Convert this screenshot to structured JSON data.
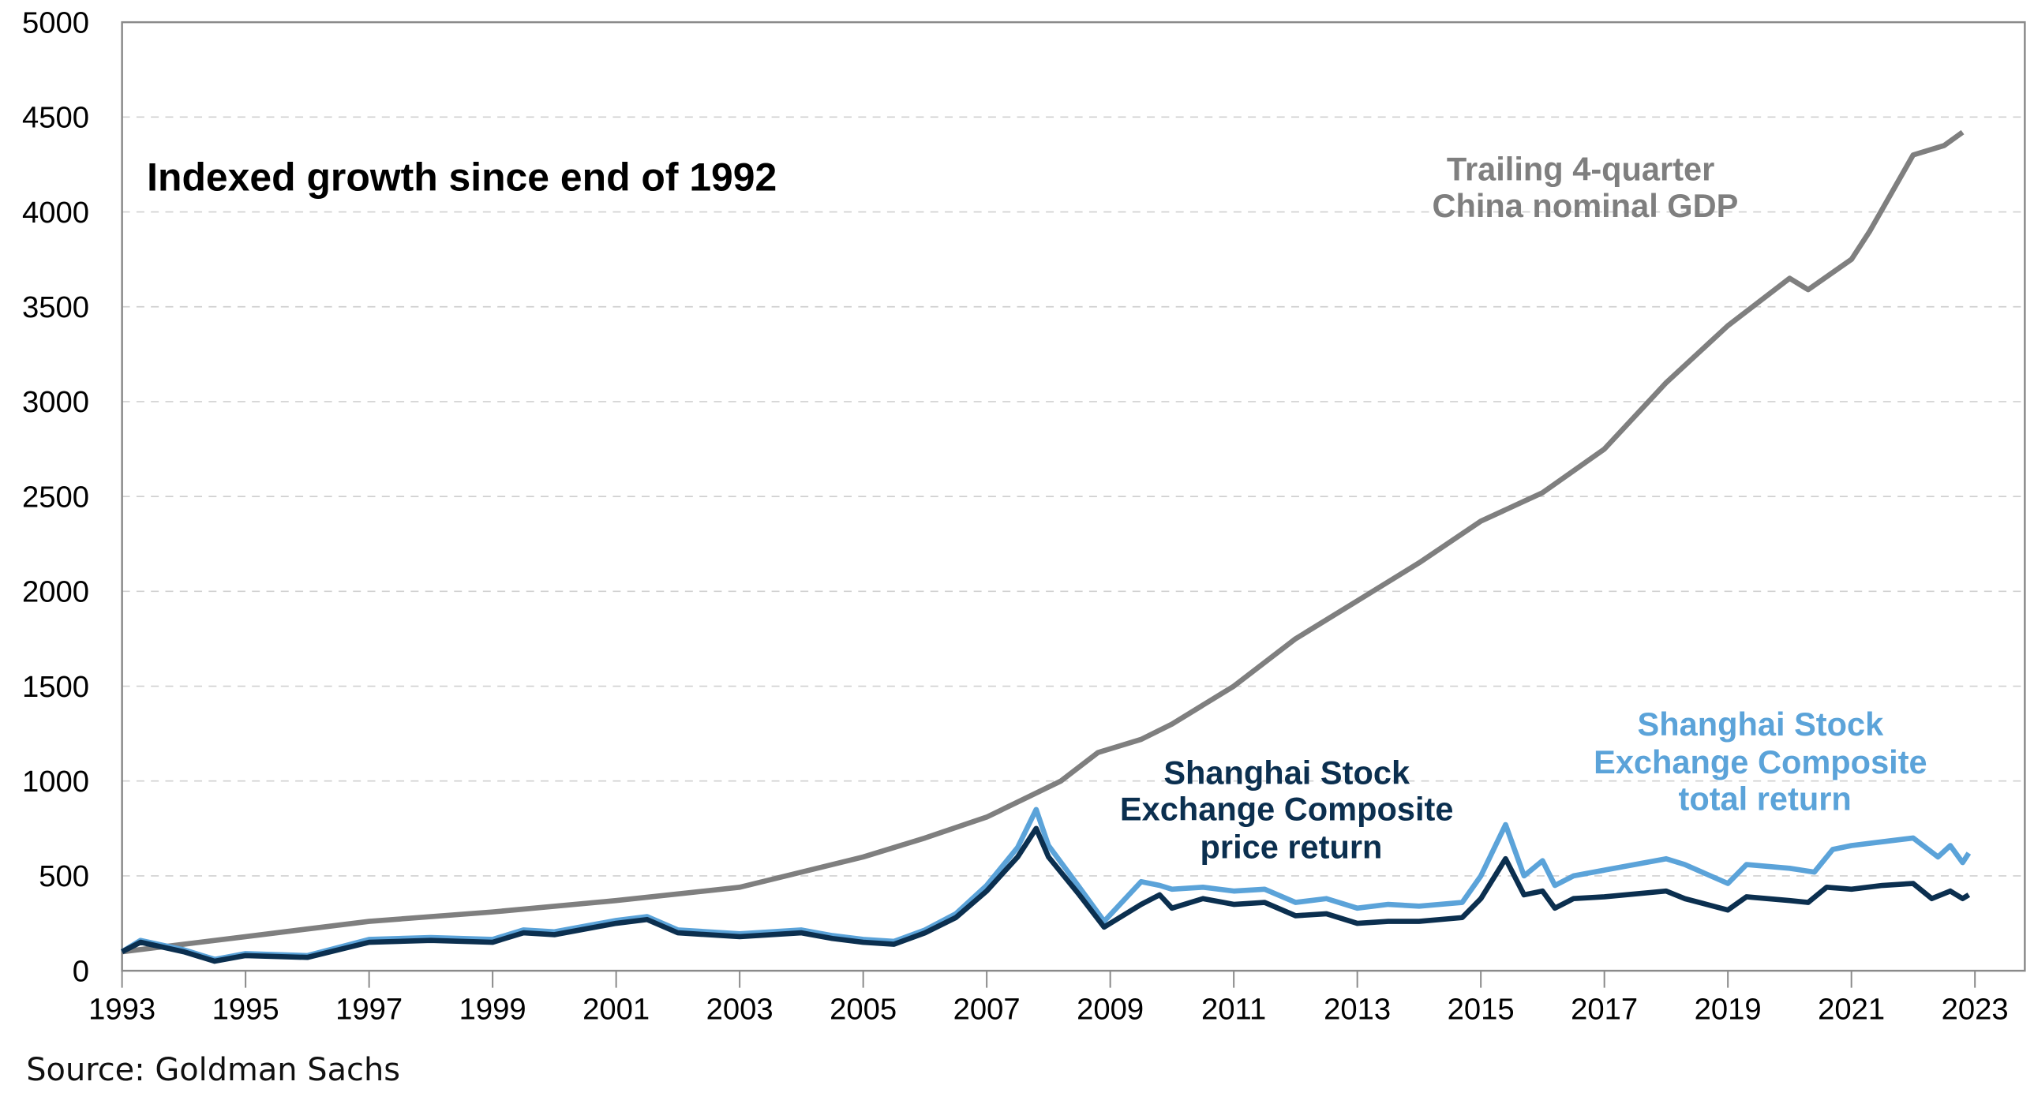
{
  "chart_data": {
    "type": "line",
    "title": "Indexed growth since end of 1992",
    "source": "Source: Goldman Sachs",
    "xlabel": "",
    "ylabel": "",
    "xlim": [
      1993,
      2023.8
    ],
    "ylim": [
      0,
      5000
    ],
    "x_ticks": [
      "1993",
      "1995",
      "1997",
      "1999",
      "2001",
      "2003",
      "2005",
      "2007",
      "2009",
      "2011",
      "2013",
      "2015",
      "2017",
      "2019",
      "2021",
      "2023"
    ],
    "y_ticks": [
      "0",
      "500",
      "1000",
      "1500",
      "2000",
      "2500",
      "3000",
      "3500",
      "4000",
      "4500",
      "5000"
    ],
    "grid": "horizontal dashed",
    "series": [
      {
        "name": "Trailing 4-quarter China nominal GDP",
        "label_lines": [
          "Trailing 4-quarter",
          "China nominal GDP"
        ],
        "color": "#7f7f7f",
        "x": [
          1993,
          1995,
          1997,
          1999,
          2001,
          2003,
          2005,
          2006,
          2007,
          2008.2,
          2008.8,
          2009.5,
          2010,
          2011,
          2012,
          2013,
          2014,
          2015,
          2016,
          2017,
          2018,
          2019,
          2020,
          2020.3,
          2021,
          2021.3,
          2022,
          2022.5,
          2022.8
        ],
        "y": [
          100,
          180,
          260,
          310,
          370,
          440,
          600,
          700,
          810,
          1000,
          1150,
          1220,
          1300,
          1500,
          1750,
          1950,
          2150,
          2370,
          2520,
          2750,
          3100,
          3400,
          3650,
          3590,
          3750,
          3900,
          4300,
          4350,
          4420
        ]
      },
      {
        "name": "Shanghai Stock Exchange Composite price return",
        "label_lines": [
          "Shanghai Stock",
          "Exchange Composite",
          "price return"
        ],
        "color": "#0b2f4f",
        "x": [
          1993,
          1993.3,
          1994,
          1994.5,
          1995,
          1996,
          1997,
          1998,
          1999,
          1999.5,
          2000,
          2001,
          2001.5,
          2002,
          2003,
          2004,
          2004.5,
          2005,
          2005.5,
          2006,
          2006.5,
          2007,
          2007.5,
          2007.8,
          2008,
          2008.5,
          2008.9,
          2009.5,
          2009.8,
          2010,
          2010.5,
          2011,
          2011.5,
          2012,
          2012.5,
          2013,
          2013.5,
          2014,
          2014.7,
          2015,
          2015.4,
          2015.7,
          2016,
          2016.2,
          2016.5,
          2017,
          2018,
          2018.3,
          2019,
          2019.3,
          2020,
          2020.3,
          2020.6,
          2021,
          2021.5,
          2022,
          2022.3,
          2022.6,
          2022.8,
          2022.9
        ],
        "y": [
          100,
          150,
          100,
          50,
          80,
          70,
          150,
          160,
          150,
          200,
          190,
          250,
          270,
          200,
          180,
          200,
          170,
          150,
          140,
          200,
          280,
          420,
          600,
          750,
          600,
          400,
          230,
          350,
          400,
          330,
          380,
          350,
          360,
          290,
          300,
          250,
          260,
          260,
          280,
          380,
          590,
          400,
          420,
          330,
          380,
          390,
          420,
          380,
          320,
          390,
          370,
          360,
          440,
          430,
          450,
          460,
          380,
          420,
          380,
          400
        ]
      },
      {
        "name": "Shanghai Stock Exchange Composite total return",
        "label_lines": [
          "Shanghai Stock",
          "Exchange Composite",
          "total return"
        ],
        "color": "#5ba3d9",
        "x": [
          1993,
          1993.3,
          1994,
          1994.5,
          1995,
          1996,
          1997,
          1998,
          1999,
          1999.5,
          2000,
          2001,
          2001.5,
          2002,
          2003,
          2004,
          2004.5,
          2005,
          2005.5,
          2006,
          2006.5,
          2007,
          2007.5,
          2007.8,
          2008,
          2008.5,
          2008.9,
          2009.5,
          2009.8,
          2010,
          2010.5,
          2011,
          2011.5,
          2012,
          2012.5,
          2013,
          2013.5,
          2014,
          2014.7,
          2015,
          2015.4,
          2015.7,
          2016,
          2016.2,
          2016.5,
          2017,
          2018,
          2018.3,
          2019,
          2019.3,
          2020,
          2020.4,
          2020.7,
          2021,
          2021.5,
          2022,
          2022.4,
          2022.6,
          2022.8,
          2022.9
        ],
        "y": [
          100,
          160,
          110,
          60,
          90,
          80,
          165,
          175,
          165,
          215,
          205,
          265,
          285,
          215,
          195,
          215,
          185,
          165,
          155,
          215,
          300,
          450,
          650,
          850,
          660,
          440,
          260,
          470,
          450,
          430,
          440,
          420,
          430,
          360,
          380,
          330,
          350,
          340,
          360,
          500,
          770,
          500,
          580,
          450,
          500,
          530,
          590,
          560,
          460,
          560,
          540,
          520,
          640,
          660,
          680,
          700,
          600,
          660,
          570,
          620
        ]
      }
    ]
  }
}
